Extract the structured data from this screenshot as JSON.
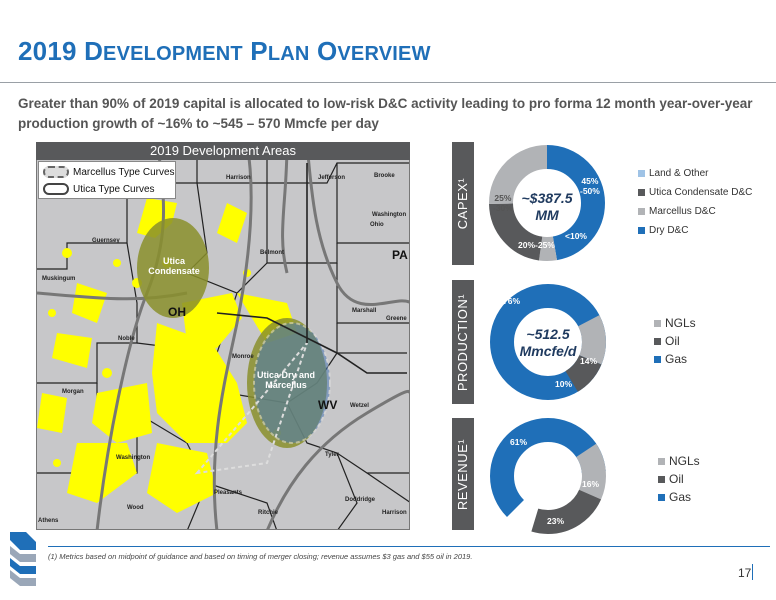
{
  "title": {
    "part1_big": "2019 D",
    "part1_small": "EVELOPMENT",
    "part2_big": " P",
    "part2_small": "LAN",
    "part3_big": " O",
    "part3_small": "VERVIEW"
  },
  "subtitle": "Greater than 90% of 2019 capital is allocated to low-risk D&C activity leading to pro forma 12 month year-over-year production growth of ~16% to ~545 – 570 Mmcfe per day",
  "map": {
    "header": "2019 Development Areas",
    "legend": [
      "Marcellus Type Curves",
      "Utica Type Curves"
    ],
    "areas": [
      "Utica Condensate",
      "Utica Dry and Marcellus"
    ],
    "states": [
      "PA",
      "OH",
      "WV"
    ],
    "counties": [
      "Harrison",
      "Jefferson",
      "Brooke",
      "Washington",
      "Ohio",
      "Guernsey",
      "Belmont",
      "Muskingum",
      "Marshall",
      "Greene",
      "Noble",
      "Monroe",
      "Wetzel",
      "Morgan",
      "Washington",
      "Tyler",
      "Pleasants",
      "Doddridge",
      "Wood",
      "Ritchie",
      "Harrison",
      "Athens"
    ]
  },
  "capex": {
    "side_label": "CAPEX¹",
    "center_line1": "~$387.5",
    "center_line2": "MM",
    "pct_dry": "45%\n-50%",
    "pct_land": "<10%",
    "pct_utica": "20%-25%",
    "pct_marcellus": "25%\n-30%",
    "legend": [
      "Land & Other",
      "Utica Condensate D&C",
      "Marcellus D&C",
      "Dry D&C"
    ]
  },
  "production": {
    "side_label": "PRODUCTION¹",
    "center_line1": "~512.5",
    "center_line2": "Mmcfe/d",
    "pct_gas": "76%",
    "pct_ngl": "14%",
    "pct_oil": "10%",
    "legend": [
      "NGLs",
      "Oil",
      "Gas"
    ]
  },
  "revenue": {
    "side_label": "REVENUE¹",
    "pct_gas": "61%",
    "pct_ngl": "16%",
    "pct_oil": "23%",
    "legend": [
      "NGLs",
      "Oil",
      "Gas"
    ]
  },
  "colors": {
    "blue": "#1f6fb8",
    "dark_gray": "#58595b",
    "light_gray": "#b1b3b6",
    "mid_gray": "#9d9fa2",
    "yellow": "#ffff00",
    "olive": "#8a8f2b"
  },
  "footnote": "(1) Metrics based on midpoint of guidance and based on timing of merger closing; revenue assumes $3 gas and $55 oil in 2019.",
  "page_number": "17"
}
